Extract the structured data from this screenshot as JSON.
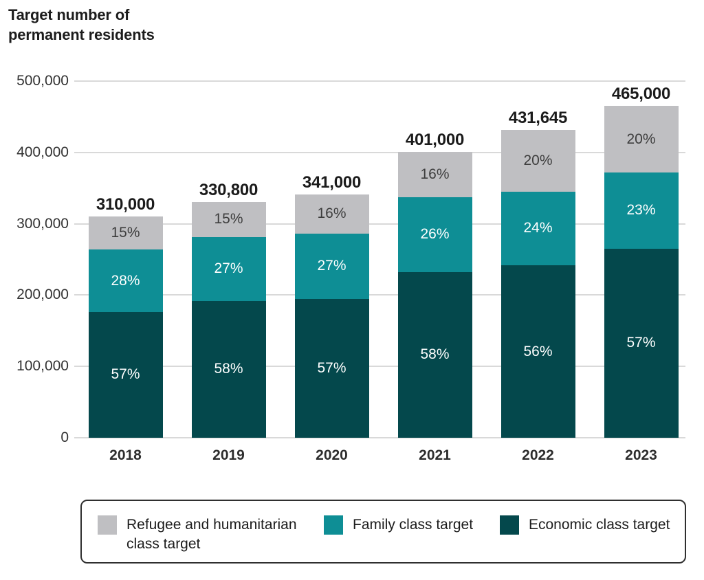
{
  "title": {
    "text": "Target number of\npermanent residents"
  },
  "y_axis": {
    "ticks": [
      {
        "value": 0,
        "label": "0"
      },
      {
        "value": 100000,
        "label": "100,000"
      },
      {
        "value": 200000,
        "label": "200,000"
      },
      {
        "value": 300000,
        "label": "300,000"
      },
      {
        "value": 400000,
        "label": "400,000"
      },
      {
        "value": 500000,
        "label": "500,000"
      }
    ]
  },
  "chart_data": {
    "type": "bar",
    "stacked": true,
    "title": "Target number of permanent residents",
    "categories": [
      "2018",
      "2019",
      "2020",
      "2021",
      "2022",
      "2023"
    ],
    "totals": [
      310000,
      330800,
      341000,
      401000,
      431645,
      465000
    ],
    "total_labels": [
      "310,000",
      "330,800",
      "341,000",
      "401,000",
      "431,645",
      "465,000"
    ],
    "series": [
      {
        "name": "Economic class target",
        "color": "#04484c",
        "label_color": "#ffffff",
        "percents": [
          57,
          58,
          57,
          58,
          56,
          57
        ],
        "labels": [
          "57%",
          "58%",
          "57%",
          "58%",
          "56%",
          "57%"
        ]
      },
      {
        "name": "Family class target",
        "color": "#0e8e95",
        "label_color": "#ffffff",
        "percents": [
          28,
          27,
          27,
          26,
          24,
          23
        ],
        "labels": [
          "28%",
          "27%",
          "27%",
          "26%",
          "24%",
          "23%"
        ]
      },
      {
        "name": "Refugee and humanitarian class target",
        "color": "#bfbfc2",
        "label_color": "#3d3d3d",
        "percents": [
          15,
          15,
          16,
          16,
          20,
          20
        ],
        "labels": [
          "15%",
          "15%",
          "16%",
          "16%",
          "20%",
          "20%"
        ]
      }
    ],
    "ylim": [
      0,
      500000
    ],
    "grid": true,
    "legend_position": "bottom"
  },
  "legend": {
    "items": [
      {
        "label": "Refugee and humanitarian class target",
        "color": "#bfbfc2"
      },
      {
        "label": "Family class target",
        "color": "#0e8e95"
      },
      {
        "label": "Economic class target",
        "color": "#04484c"
      }
    ]
  }
}
